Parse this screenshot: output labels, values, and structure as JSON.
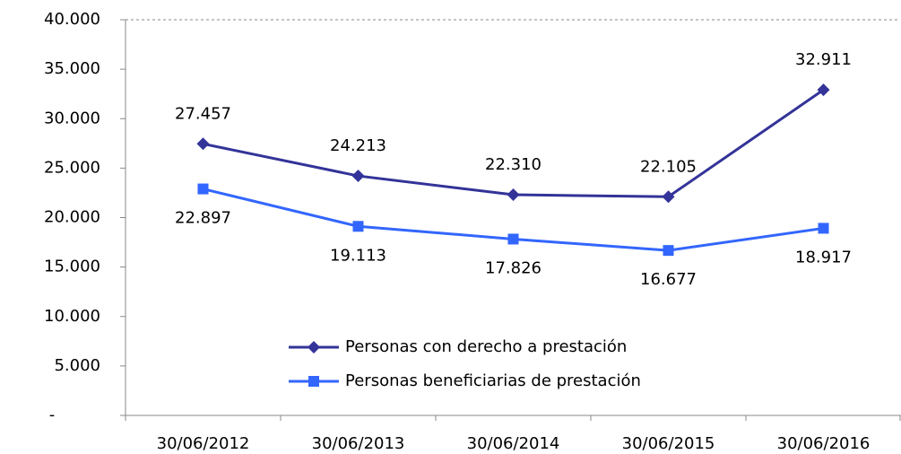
{
  "chart_data": {
    "type": "line",
    "categories": [
      "30/06/2012",
      "30/06/2013",
      "30/06/2014",
      "30/06/2015",
      "30/06/2016"
    ],
    "series": [
      {
        "name": "Personas con derecho a prestación",
        "color": "#333399",
        "marker": "diamond",
        "values": [
          27457,
          24213,
          22310,
          22105,
          32911
        ],
        "value_labels": [
          "27.457",
          "24.213",
          "22.310",
          "22.105",
          "32.911"
        ]
      },
      {
        "name": "Personas beneficiarias de prestación",
        "color": "#3366ff",
        "marker": "square",
        "values": [
          22897,
          19113,
          17826,
          16677,
          18917
        ],
        "value_labels": [
          "22.897",
          "19.113",
          "17.826",
          "16.677",
          "18.917"
        ]
      }
    ],
    "ylim": [
      0,
      40000
    ],
    "yticks": [
      {
        "value": 0,
        "label": "-"
      },
      {
        "value": 5000,
        "label": "5.000"
      },
      {
        "value": 10000,
        "label": "10.000"
      },
      {
        "value": 15000,
        "label": "15.000"
      },
      {
        "value": 20000,
        "label": "20.000"
      },
      {
        "value": 25000,
        "label": "25.000"
      },
      {
        "value": 30000,
        "label": "30.000"
      },
      {
        "value": 35000,
        "label": "35.000"
      },
      {
        "value": 40000,
        "label": "40.000"
      }
    ],
    "grid": false
  }
}
